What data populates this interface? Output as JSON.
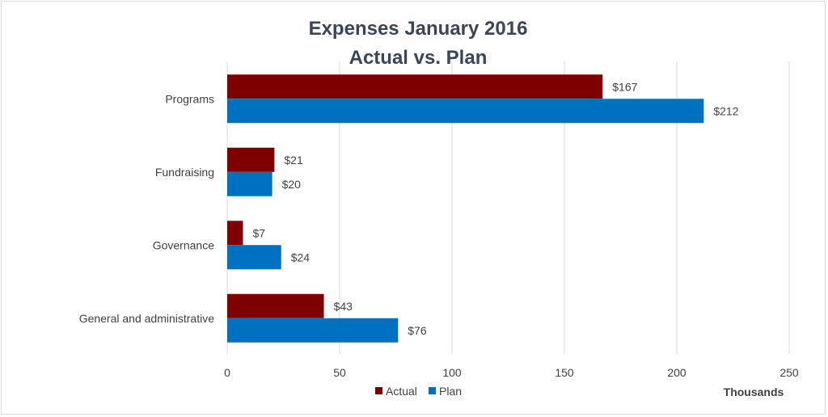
{
  "chart_data": {
    "type": "bar",
    "orientation": "horizontal",
    "title": [
      "Expenses January 2016",
      "Actual vs. Plan"
    ],
    "xlabel": "Thousands",
    "ylabel": "",
    "categories": [
      "Programs",
      "Fundraising",
      "Governance",
      "General and administrative"
    ],
    "series": [
      {
        "name": "Actual",
        "values": [
          167,
          21,
          7,
          43
        ],
        "labels": [
          "$167",
          "$21",
          "$7",
          "$43"
        ],
        "color": "#7f0000"
      },
      {
        "name": "Plan",
        "values": [
          212,
          20,
          24,
          76
        ],
        "labels": [
          "$212",
          "$20",
          "$24",
          "$76"
        ],
        "color": "#0070c0"
      }
    ],
    "xlim": [
      0,
      250
    ],
    "xticks": [
      0,
      50,
      100,
      150,
      200,
      250
    ],
    "grid": true,
    "legend_position": "bottom"
  }
}
